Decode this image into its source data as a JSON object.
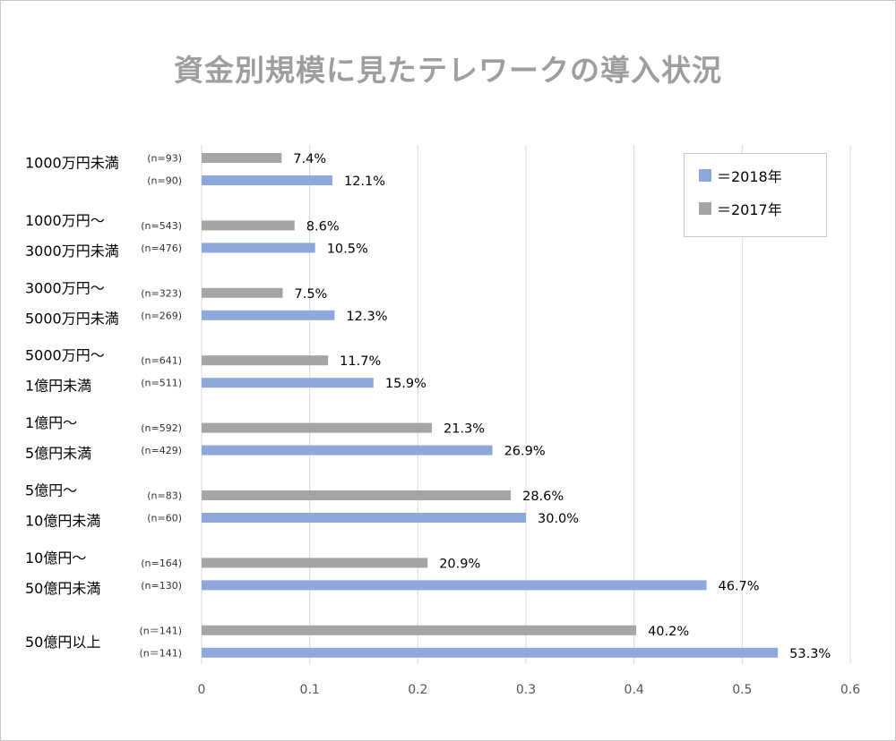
{
  "title": "資金別規模に見たテレワークの導入状況",
  "legend": {
    "items": [
      {
        "label": "＝2018年",
        "color": "#8FA8DC"
      },
      {
        "label": "＝2017年",
        "color": "#A5A5A5"
      }
    ]
  },
  "chart_data": {
    "type": "bar",
    "orientation": "horizontal",
    "title": "資金別規模に見たテレワークの導入状況",
    "xlim": [
      0,
      0.6
    ],
    "xticks": [
      "0",
      "0.1",
      "0.2",
      "0.3",
      "0.4",
      "0.5",
      "0.6"
    ],
    "grid": true,
    "legend_position": "top-right",
    "categories": [
      {
        "lines": [
          "1000万円未満"
        ],
        "n2017": "(n=93)",
        "n2018": "(n=90)"
      },
      {
        "lines": [
          "1000万円～",
          "3000万円未満"
        ],
        "n2017": "(n=543)",
        "n2018": "(n=476)"
      },
      {
        "lines": [
          "3000万円～",
          "5000万円未満"
        ],
        "n2017": "(n=323)",
        "n2018": "(n=269)"
      },
      {
        "lines": [
          "5000万円～",
          "1億円未満"
        ],
        "n2017": "(n=641)",
        "n2018": "(n=511)"
      },
      {
        "lines": [
          "1億円～",
          "5億円未満"
        ],
        "n2017": "(n=592)",
        "n2018": "(n=429)"
      },
      {
        "lines": [
          "5億円～",
          "10億円未満"
        ],
        "n2017": "(n=83)",
        "n2018": "(n=60)"
      },
      {
        "lines": [
          "10億円～",
          "50億円未満"
        ],
        "n2017": "(n=164)",
        "n2018": "(n=130)"
      },
      {
        "lines": [
          "50億円以上"
        ],
        "n2017": "(n＝141)",
        "n2018": "(n＝141)"
      }
    ],
    "series": [
      {
        "name": "2017年",
        "color": "#A5A5A5",
        "values": [
          0.074,
          0.086,
          0.075,
          0.117,
          0.213,
          0.286,
          0.209,
          0.402
        ],
        "labels": [
          "7.4%",
          "8.6%",
          "7.5%",
          "11.7%",
          "21.3%",
          "28.6%",
          "20.9%",
          "40.2%"
        ]
      },
      {
        "name": "2018年",
        "color": "#8FA8DC",
        "values": [
          0.121,
          0.105,
          0.123,
          0.159,
          0.269,
          0.3,
          0.467,
          0.533
        ],
        "labels": [
          "12.1%",
          "10.5%",
          "12.3%",
          "15.9%",
          "26.9%",
          "30.0%",
          "46.7%",
          "53.3%"
        ]
      }
    ]
  }
}
